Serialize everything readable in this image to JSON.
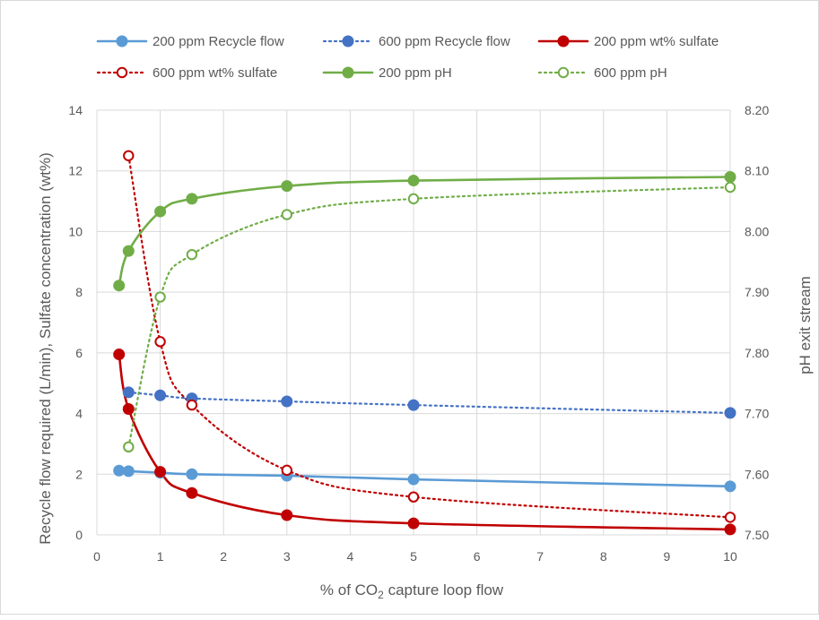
{
  "chart_data": {
    "type": "line",
    "xlabel": "% of CO₂ capture loop flow",
    "xlabel_parts": {
      "pre": "% of CO",
      "sub": "2",
      "post": " capture loop flow"
    },
    "ylabel_left": "Recycle flow required (L/min), Sulfate concentration (wt%)",
    "ylabel_right": "pH exit stream",
    "xlim": [
      0,
      10
    ],
    "ylim_left": [
      0,
      14
    ],
    "ylim_right": [
      7.5,
      8.2
    ],
    "x_ticks": [
      "0",
      "1",
      "2",
      "3",
      "4",
      "5",
      "6",
      "7",
      "8",
      "9",
      "10"
    ],
    "y_left_ticks": [
      "0",
      "2",
      "4",
      "6",
      "8",
      "10",
      "12",
      "14"
    ],
    "y_right_ticks": [
      "7.50",
      "7.60",
      "7.70",
      "7.80",
      "7.90",
      "8.00",
      "8.10",
      "8.20"
    ],
    "grid": true,
    "legend_position": "top",
    "series": [
      {
        "name": "200 ppm Recycle flow",
        "axis": "left",
        "color": "#5b9bd5",
        "dash": "solid",
        "marker": "filled",
        "x": [
          0.35,
          0.5,
          1,
          1.5,
          3,
          5,
          10
        ],
        "y": [
          2.12,
          2.1,
          2.05,
          2.0,
          1.95,
          1.83,
          1.6
        ]
      },
      {
        "name": "600 ppm Recycle flow",
        "axis": "left",
        "color": "#4472c4",
        "dash": "dotted",
        "marker": "filled",
        "x": [
          0.5,
          1,
          1.5,
          3,
          5,
          10
        ],
        "y": [
          4.7,
          4.6,
          4.5,
          4.4,
          4.28,
          4.02
        ]
      },
      {
        "name": "200 ppm wt% sulfate",
        "axis": "left",
        "color": "#c00000",
        "dash": "solid",
        "marker": "filled",
        "x": [
          0.35,
          0.5,
          1,
          1.5,
          3,
          5,
          10
        ],
        "y": [
          5.95,
          4.15,
          2.08,
          1.38,
          0.65,
          0.38,
          0.18
        ]
      },
      {
        "name": "600 ppm wt% sulfate",
        "axis": "left",
        "color": "#c00000",
        "dash": "dotted",
        "marker": "open",
        "x": [
          0.5,
          1,
          1.5,
          3,
          5,
          10
        ],
        "y": [
          12.5,
          6.37,
          4.28,
          2.13,
          1.25,
          0.58
        ]
      },
      {
        "name": "200 ppm pH",
        "axis": "right",
        "color": "#70ad47",
        "dash": "solid",
        "marker": "filled",
        "x": [
          0.35,
          0.5,
          1,
          1.5,
          3,
          5,
          10
        ],
        "y": [
          7.911,
          7.968,
          8.033,
          8.054,
          8.075,
          8.084,
          8.09
        ]
      },
      {
        "name": "600 ppm pH",
        "axis": "right",
        "color": "#70ad47",
        "dash": "dotted",
        "marker": "open",
        "x": [
          0.5,
          1,
          1.5,
          3,
          5,
          10
        ],
        "y": [
          7.645,
          7.892,
          7.962,
          8.028,
          8.054,
          8.073
        ]
      }
    ]
  }
}
